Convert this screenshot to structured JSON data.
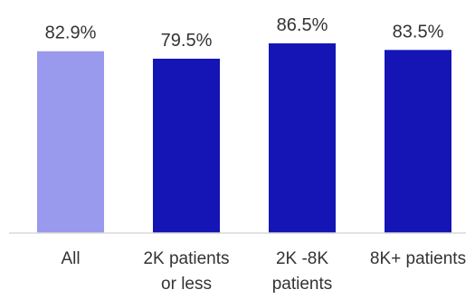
{
  "chart_data": {
    "type": "bar",
    "categories": [
      [
        "All"
      ],
      [
        "2K patients",
        "or less"
      ],
      [
        "2K -8K",
        "patients"
      ],
      [
        "8K+ patients"
      ]
    ],
    "values": [
      82.9,
      79.5,
      86.5,
      83.5
    ],
    "data_labels": [
      "82.9%",
      "79.5%",
      "86.5%",
      "83.5%"
    ],
    "bar_colors": [
      "#9999ee",
      "#1515b5",
      "#1515b5",
      "#1515b5"
    ],
    "ylim": [
      0,
      100
    ],
    "grid": false,
    "legend": "none",
    "title": "",
    "xlabel": "",
    "ylabel": ""
  }
}
